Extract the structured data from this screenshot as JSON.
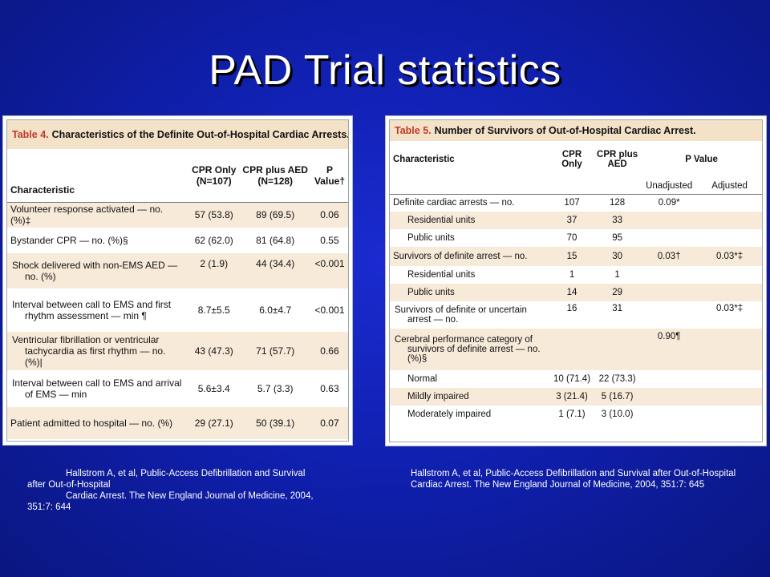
{
  "title": "PAD Trial statistics",
  "table4": {
    "number": "Table 4.",
    "caption": "Characteristics of the Definite Out-of-Hospital Cardiac Arrests.*",
    "headers": {
      "characteristic": "Characteristic",
      "col1a": "CPR Only",
      "col1b": "(N=107)",
      "col2a": "CPR plus AED",
      "col2b": "(N=128)",
      "col3a": "P",
      "col3b": "Value†"
    },
    "rows": [
      {
        "label": "Volunteer response activated — no. (%)‡",
        "c1": "57 (53.8)",
        "c2": "89 (69.5)",
        "p": "0.06"
      },
      {
        "label": "Bystander CPR — no. (%)§",
        "c1": "62 (62.0)",
        "c2": "81 (64.8)",
        "p": "0.55"
      },
      {
        "label": "Shock delivered with non-EMS AED — no. (%)",
        "c1": "2 (1.9)",
        "c2": "44 (34.4)",
        "p": "<0.001"
      },
      {
        "label": "Interval between call to EMS and first rhythm assessment — min ¶",
        "c1": "8.7±5.5",
        "c2": "6.0±4.7",
        "p": "<0.001"
      },
      {
        "label": "Ventricular fibrillation or ventricular tachycardia as first rhythm — no. (%)|",
        "c1": "43 (47.3)",
        "c2": "71 (57.7)",
        "p": "0.66"
      },
      {
        "label": "Interval between call to EMS and arrival of EMS — min",
        "c1": "5.6±3.4",
        "c2": "5.7 (3.3)",
        "p": "0.63"
      },
      {
        "label": "Patient admitted to hospital — no. (%)",
        "c1": "29 (27.1)",
        "c2": "50 (39.1)",
        "p": "0.07"
      }
    ]
  },
  "table5": {
    "number": "Table 5.",
    "caption": "Number of Survivors of Out-of-Hospital Cardiac Arrest.",
    "headers": {
      "characteristic": "Characteristic",
      "col1a": "CPR",
      "col1b": "Only",
      "col2a": "CPR plus",
      "col2b": "AED",
      "pvalue": "P Value",
      "unadjusted": "Unadjusted",
      "adjusted": "Adjusted"
    },
    "rows": [
      {
        "label": "Definite cardiac arrests — no.",
        "c1": "107",
        "c2": "128",
        "u": "0.09*",
        "a": ""
      },
      {
        "label": "Residential units",
        "c1": "37",
        "c2": "33",
        "u": "",
        "a": ""
      },
      {
        "label": "Public units",
        "c1": "70",
        "c2": "95",
        "u": "",
        "a": ""
      },
      {
        "label": "Survivors of definite arrest — no.",
        "c1": "15",
        "c2": "30",
        "u": "0.03†",
        "a": "0.03*‡"
      },
      {
        "label": "Residential units",
        "c1": "1",
        "c2": "1",
        "u": "",
        "a": ""
      },
      {
        "label": "Public units",
        "c1": "14",
        "c2": "29",
        "u": "",
        "a": ""
      },
      {
        "label": "Survivors of definite or uncertain arrest — no.",
        "c1": "16",
        "c2": "31",
        "u": "",
        "a": "0.03*‡"
      },
      {
        "label": "Cerebral performance category of survivors of definite arrest — no. (%)§",
        "c1": "",
        "c2": "",
        "u": "0.90¶",
        "a": ""
      },
      {
        "label": "Normal",
        "c1": "10 (71.4)",
        "c2": "22 (73.3)",
        "u": "",
        "a": ""
      },
      {
        "label": "Mildly impaired",
        "c1": "3 (21.4)",
        "c2": "5 (16.7)",
        "u": "",
        "a": ""
      },
      {
        "label": "Moderately impaired",
        "c1": "1 (7.1)",
        "c2": "3 (10.0)",
        "u": "",
        "a": ""
      }
    ]
  },
  "citation_left": {
    "line1": "Hallstrom A, et al, Public-Access Defibrillation and Survival after Out-of-Hospital",
    "line2": "Cardiac Arrest. The New England Journal of Medicine, 2004, 351:7: 644"
  },
  "citation_right": {
    "line1": "Hallstrom A, et al, Public-Access Defibrillation and Survival after Out-of-Hospital",
    "line2": "Cardiac Arrest. The New England Journal of Medicine, 2004, 351:7: 645"
  }
}
